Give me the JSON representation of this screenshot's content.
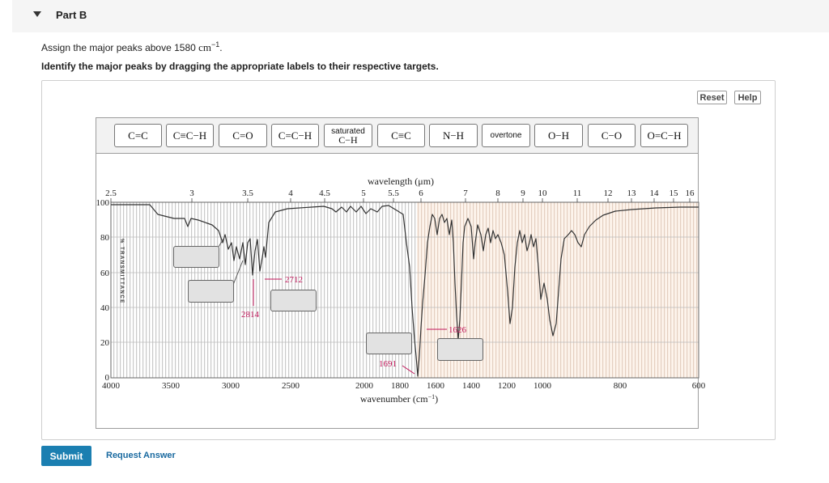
{
  "part": {
    "title": "Part B"
  },
  "question": {
    "line1_text": "Assign the major peaks above 1580 ",
    "line1_unit": "cm",
    "line1_exp": "−1",
    "line1_end": ".",
    "line2": "Identify the major peaks by dragging the appropriate labels to their respective targets."
  },
  "toolbar": {
    "reset": "Reset",
    "help": "Help"
  },
  "labels": [
    "C=C",
    "C≡C−H",
    "C=O",
    "C=C−H",
    "saturated",
    "C−H",
    "C≡C",
    "N−H",
    "overtone",
    "O−H",
    "C−O",
    "O=C−H"
  ],
  "chart": {
    "top_axis_title": "wavelength (μm)",
    "top_ticks": [
      "2.5",
      "3",
      "3.5",
      "4",
      "4.5",
      "5",
      "5.5",
      "6",
      "7",
      "8",
      "9",
      "10",
      "11",
      "12",
      "13",
      "14",
      "15",
      "16"
    ],
    "left_ticks": [
      "100",
      "80",
      "60",
      "40",
      "20",
      "0"
    ],
    "left_axis_title": "% TRANSMITTANCE",
    "bottom_ticks": [
      "4000",
      "3500",
      "3000",
      "2500",
      "2000",
      "1800",
      "1600",
      "1400",
      "1200",
      "1000",
      "800",
      "600"
    ],
    "bottom_axis_title": "wavenumber (cm",
    "bottom_axis_exp": "−1",
    "bottom_axis_end": ")",
    "peak_labels": [
      "2712",
      "2814",
      "1626",
      "1691"
    ]
  },
  "footer": {
    "submit": "Submit",
    "request": "Request Answer"
  }
}
